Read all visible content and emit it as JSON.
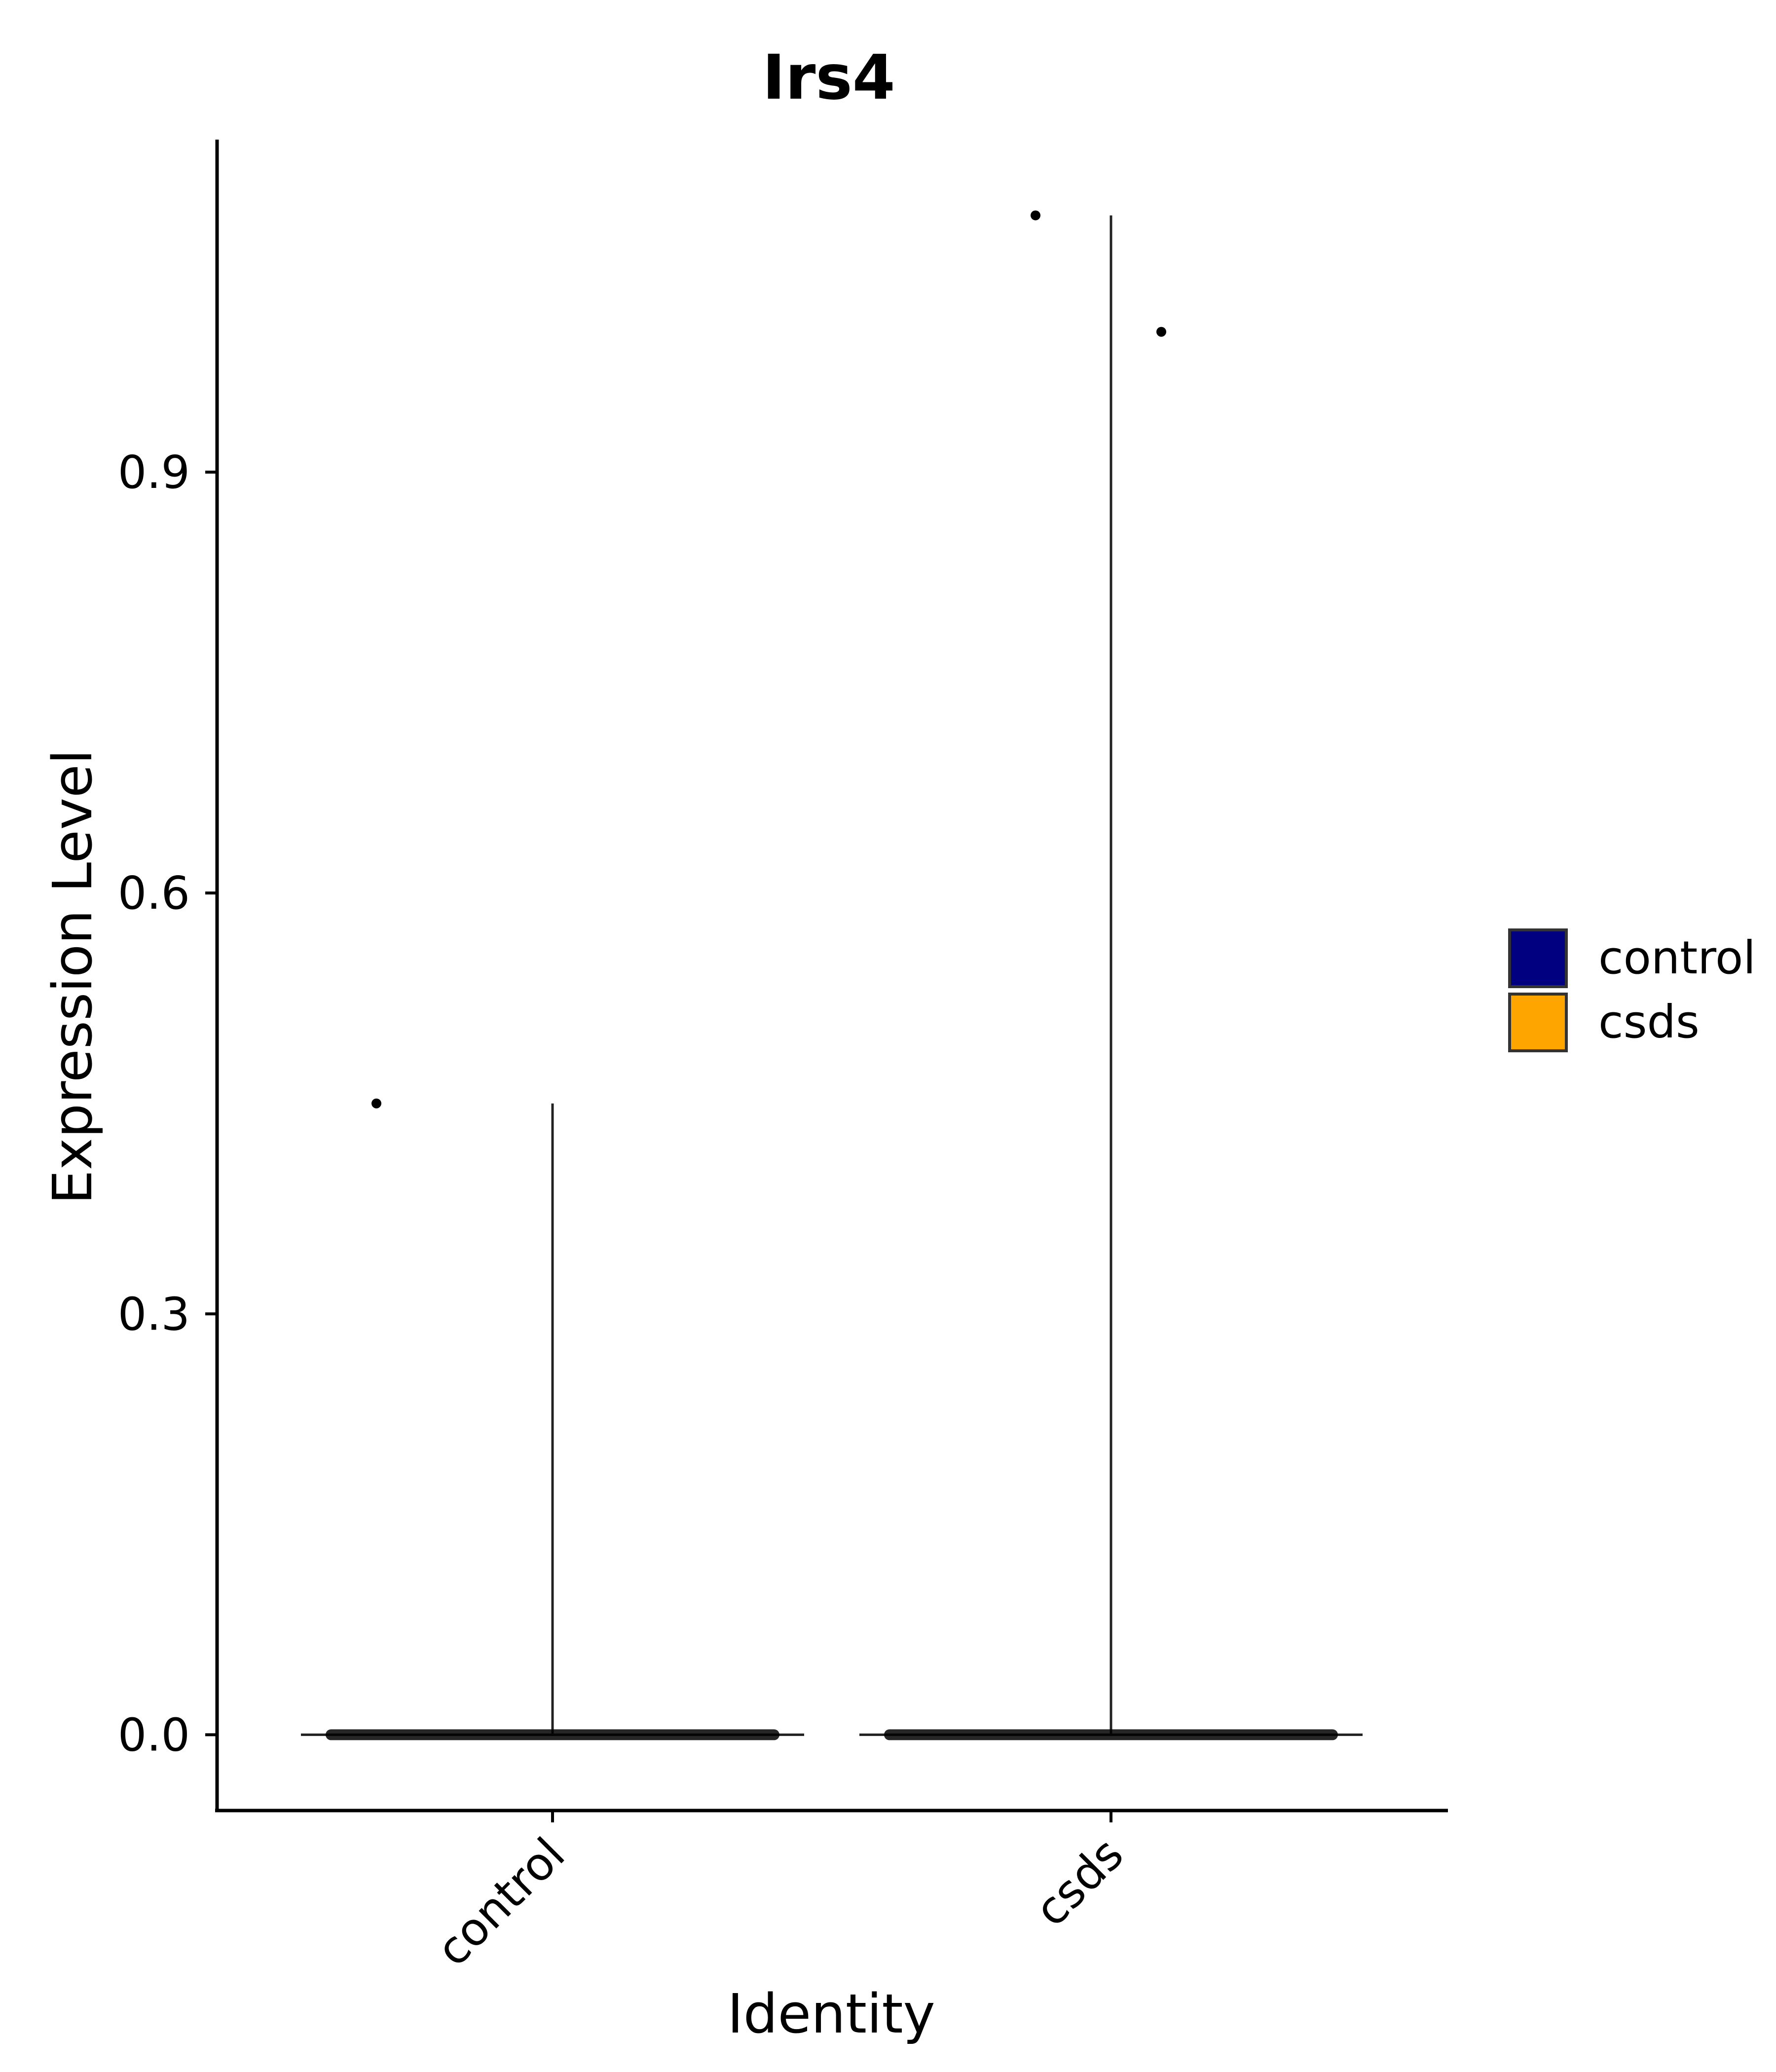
{
  "chart_data": {
    "type": "violin",
    "title": "Irs4",
    "xlabel": "Identity",
    "ylabel": "Expression Level",
    "categories": [
      "control",
      "csds"
    ],
    "ylim": [
      -0.054,
      1.137
    ],
    "yticks": [
      0.0,
      0.3,
      0.6,
      0.9
    ],
    "ytick_labels": [
      "0.0",
      "0.3",
      "0.6",
      "0.9"
    ],
    "grid": false,
    "legend": {
      "placement": "right",
      "entries": [
        {
          "label": "control",
          "color": "#000080"
        },
        {
          "label": "csds",
          "color": "#FFA500"
        }
      ]
    },
    "series": [
      {
        "category": "control",
        "color": "#000080",
        "max": 0.45,
        "bulk_value": 0.0,
        "outliers": [
          {
            "x_jitter": -0.35,
            "y": 0.45
          }
        ]
      },
      {
        "category": "csds",
        "color": "#FFA500",
        "max": 1.083,
        "bulk_value": 0.0,
        "outliers": [
          {
            "x_jitter": -0.15,
            "y": 1.083
          },
          {
            "x_jitter": 0.1,
            "y": 1.0
          }
        ]
      }
    ]
  }
}
